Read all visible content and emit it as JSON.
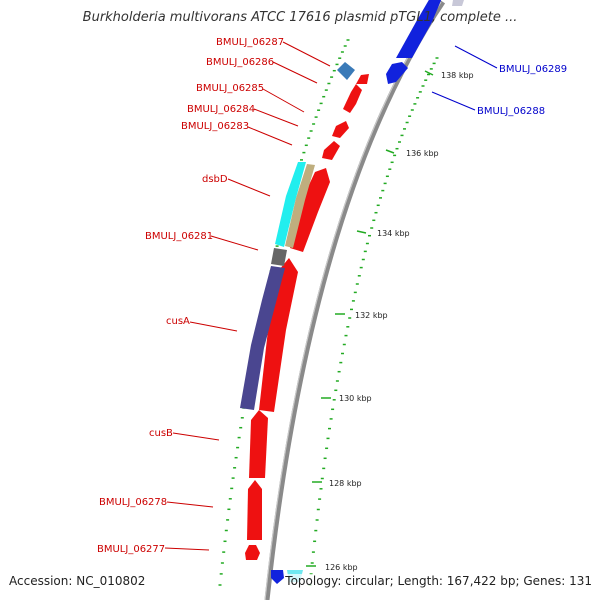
{
  "title": "Burkholderia multivorans ATCC 17616 plasmid pTGL1, complete ...",
  "footer": {
    "accession": "Accession: NC_010802",
    "summary": "Topology: circular; Length: 167,422 bp; Genes: 131"
  },
  "colors": {
    "backbone": "#8a8a8a",
    "forward_gene": "#ee1111",
    "reverse_gene": "#1122dd",
    "tick": "#22aa22",
    "label_forward": "#cc0000",
    "label_reverse": "#0000cc",
    "cusA_domain": "#4a4690",
    "dsbD_domain_tan": "#bfae7e",
    "dsbD_domain_cyan": "#22eeee",
    "grey_domain": "#666666",
    "blue_domain": "#3a7ab8"
  },
  "gene_labels": {
    "g06287": "BMULJ_06287",
    "g06286": "BMULJ_06286",
    "g06285": "BMULJ_06285",
    "g06284": "BMULJ_06284",
    "g06283": "BMULJ_06283",
    "dsbD": "dsbD",
    "g06281": "BMULJ_06281",
    "cusA": "cusA",
    "cusB": "cusB",
    "g06278": "BMULJ_06278",
    "g06277": "BMULJ_06277",
    "g06289": "BMULJ_06289",
    "g06288": "BMULJ_06288"
  },
  "scale_labels": {
    "k126": "126 kbp",
    "k128": "128 kbp",
    "k130": "130 kbp",
    "k132": "132 kbp",
    "k134": "134 kbp",
    "k136": "136 kbp",
    "k138": "138 kbp"
  }
}
